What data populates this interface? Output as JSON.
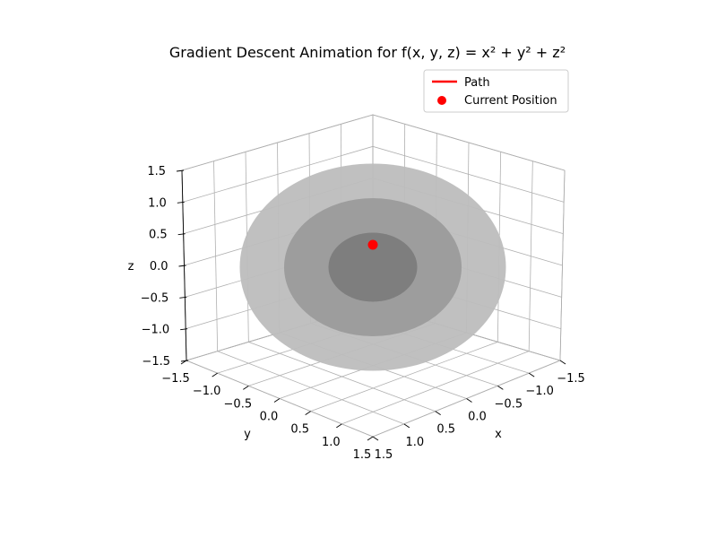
{
  "chart_data": {
    "type": "3d-surface",
    "title": "Gradient Descent Animation for f(x, y, z) = x² + y² + z²",
    "xlabel": "x",
    "ylabel": "y",
    "zlabel": "z",
    "xlim": [
      -1.5,
      1.5
    ],
    "ylim": [
      -1.5,
      1.5
    ],
    "zlim": [
      -1.5,
      1.5
    ],
    "x_ticks": [
      "−1.5",
      "−1.0",
      "−0.5",
      "0.0",
      "0.5",
      "1.0",
      "1.5"
    ],
    "y_ticks": [
      "−1.5",
      "−1.0",
      "−0.5",
      "0.0",
      "0.5",
      "1.0",
      "1.5"
    ],
    "z_ticks": [
      "−1.5",
      "−1.0",
      "−0.5",
      "0.0",
      "0.5",
      "1.0",
      "1.5"
    ],
    "level_surfaces": [
      {
        "radius": 1.5,
        "color": "#bdbdbd"
      },
      {
        "radius": 1.0,
        "color": "#9b9b9b"
      },
      {
        "radius": 0.5,
        "color": "#7c7c7c"
      }
    ],
    "legend": {
      "placement": "top-right",
      "entries": [
        {
          "label": "Path",
          "kind": "line",
          "color": "#ff0000"
        },
        {
          "label": "Current Position",
          "kind": "point",
          "color": "#ff0000"
        }
      ]
    },
    "current_position": {
      "x": 0.0,
      "y": 0.0,
      "z": 0.0,
      "color": "#ff0000"
    },
    "grid": true
  }
}
